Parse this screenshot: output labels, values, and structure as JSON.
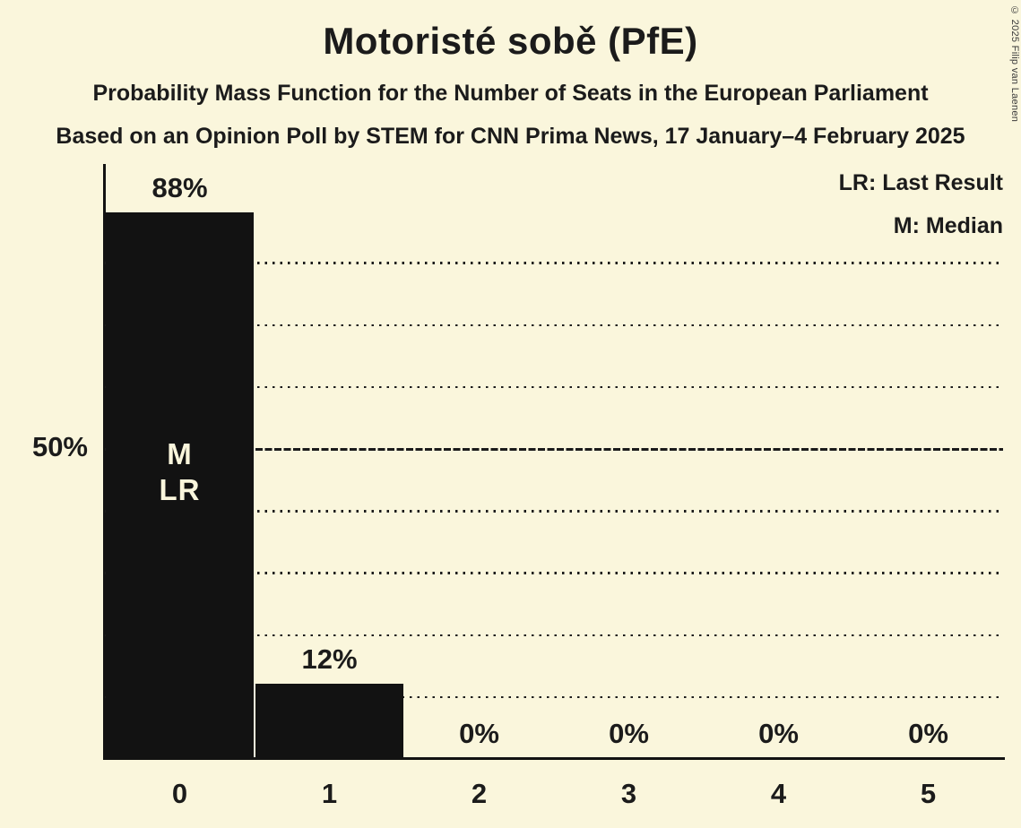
{
  "header": {
    "title": "Motoristé sobě (PfE)",
    "subtitle1": "Probability Mass Function for the Number of Seats in the European Parliament",
    "subtitle2": "Based on an Opinion Poll by STEM for CNN Prima News, 17 January–4 February 2025"
  },
  "legend": {
    "lr": "LR: Last Result",
    "m": "M: Median"
  },
  "copyright": "© 2025 Filip van Laenen",
  "colors": {
    "background": "#FAF6DC",
    "bar": "#121212",
    "text": "#1B1B1B"
  },
  "chart_data": {
    "type": "bar",
    "title": "Motoristé sobě (PfE)",
    "categories": [
      "0",
      "1",
      "2",
      "3",
      "4",
      "5"
    ],
    "values": [
      88,
      12,
      0,
      0,
      0,
      0
    ],
    "value_labels": [
      "88%",
      "12%",
      "0%",
      "0%",
      "0%",
      "0%"
    ],
    "xlabel": "",
    "ylabel": "",
    "ylim": [
      0,
      96
    ],
    "y_tick": {
      "value": 50,
      "label": "50%"
    },
    "gridlines": {
      "dotted": [
        10,
        20,
        30,
        40,
        60,
        70,
        80
      ],
      "solid": [
        50
      ]
    },
    "legend_position": "top-right",
    "annotations": [
      {
        "category": "0",
        "lines": "M\nLR",
        "meaning": [
          "Median",
          "Last Result"
        ]
      }
    ]
  }
}
